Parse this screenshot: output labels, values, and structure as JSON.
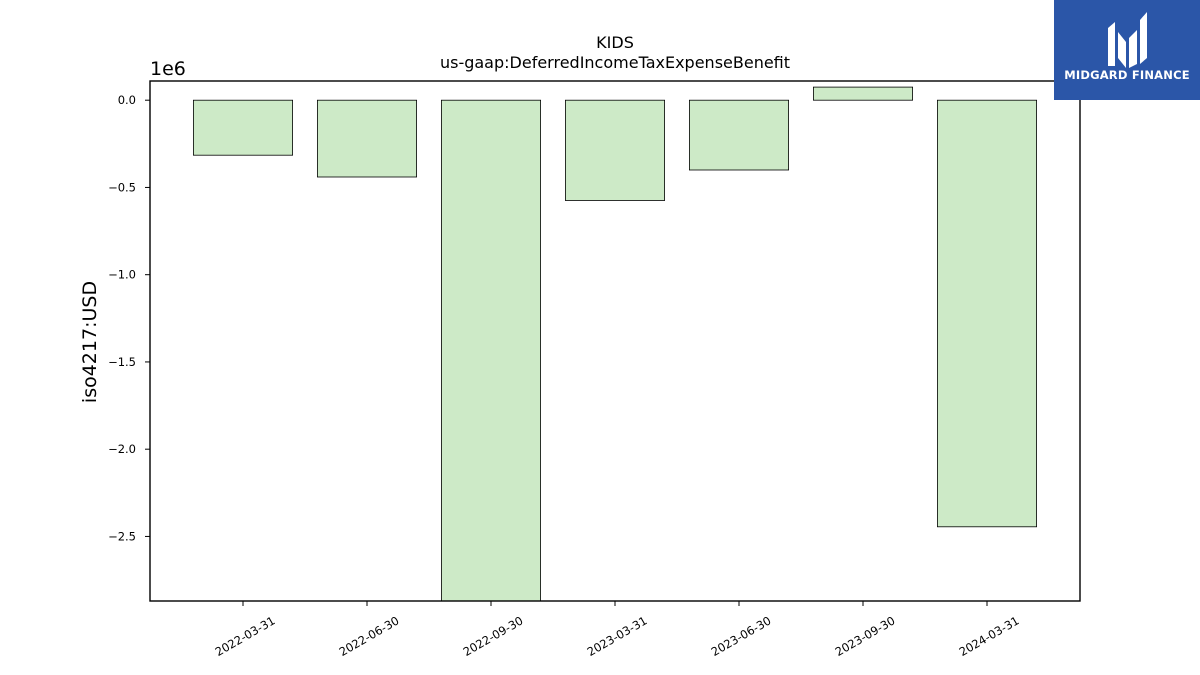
{
  "brand": {
    "name": "MIDGARD FINANCE",
    "bg_color": "#2b56a8"
  },
  "chart_data": {
    "type": "bar",
    "title": "KIDS",
    "subtitle": "us-gaap:DeferredIncomeTaxExpenseBenefit",
    "ylabel": "iso4217:USD",
    "xlabel": "",
    "scale_label": "1e6",
    "categories": [
      "2022-03-31",
      "2022-06-30",
      "2022-09-30",
      "2023-03-31",
      "2023-06-30",
      "2023-09-30",
      "2024-03-31"
    ],
    "values": [
      -315000,
      -440000,
      -2870000,
      -575000,
      -400000,
      75000,
      -2445000
    ],
    "ylim": [
      -2.87,
      0.11
    ],
    "y_ticks": [
      0.0,
      -0.5,
      -1.0,
      -1.5,
      -2.0,
      -2.5
    ],
    "y_tick_labels": [
      "0.0",
      "−0.5",
      "−1.0",
      "−1.5",
      "−2.0",
      "−2.5"
    ],
    "bar_color": "#cdeac7",
    "edge_color": "#000000",
    "grid": false,
    "legend": "none"
  }
}
